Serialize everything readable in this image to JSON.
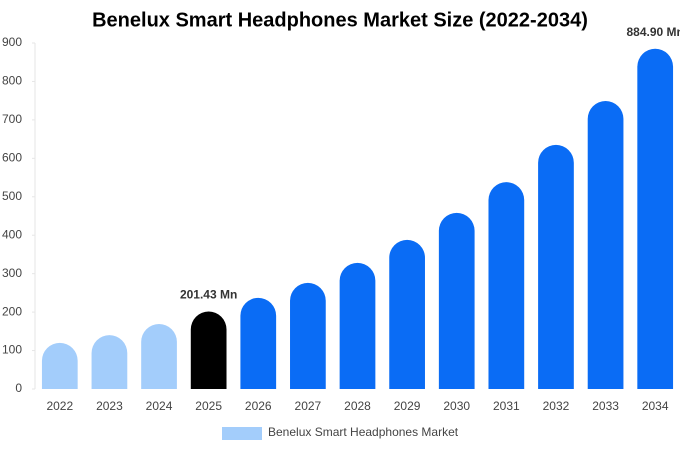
{
  "chart_data": {
    "type": "bar",
    "title": "Benelux Smart Headphones Market Size (2022-2034)",
    "categories": [
      "2022",
      "2023",
      "2024",
      "2025",
      "2026",
      "2027",
      "2028",
      "2029",
      "2030",
      "2031",
      "2032",
      "2033",
      "2034"
    ],
    "series": [
      {
        "name": "Benelux Smart Headphones Market",
        "color": "#a3cdfb",
        "colors": [
          "#a3cdfb",
          "#a3cdfb",
          "#a3cdfb",
          "#000000",
          "#0a6cf5",
          "#0a6cf5",
          "#0a6cf5",
          "#0a6cf5",
          "#0a6cf5",
          "#0a6cf5",
          "#0a6cf5",
          "#0a6cf5",
          "#0a6cf5"
        ],
        "values": [
          120,
          140,
          169,
          201.43,
          237,
          276,
          328,
          388,
          458,
          538,
          635,
          749,
          884.9
        ],
        "value_labels": [
          null,
          null,
          null,
          "201.43 Mn",
          null,
          null,
          null,
          null,
          null,
          null,
          null,
          null,
          "884.90 Mn"
        ]
      }
    ],
    "ylim": [
      0,
      900
    ],
    "yticks": [
      0,
      100,
      200,
      300,
      400,
      500,
      600,
      700,
      800,
      900
    ],
    "grid": false
  }
}
